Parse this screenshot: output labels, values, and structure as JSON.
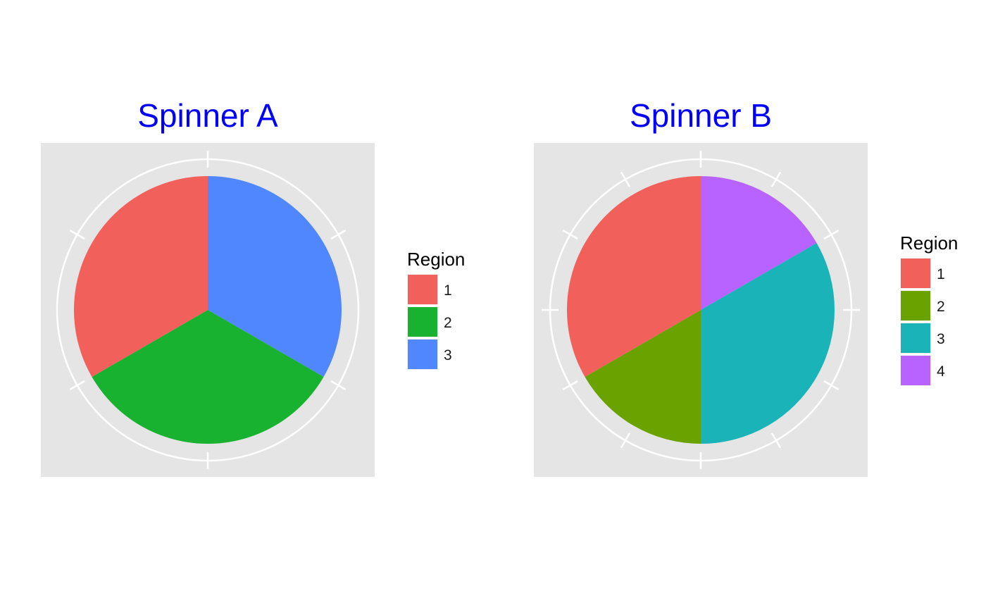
{
  "chart_data": [
    {
      "type": "pie",
      "title": "Spinner A",
      "title_color": "#0000FF",
      "panel_color": "#E5E5E5",
      "grid": true,
      "legend": {
        "title": "Region",
        "placement": "right"
      },
      "start_angle_deg": 0,
      "direction": "clockwise",
      "slices": [
        {
          "label": "1",
          "value": 1,
          "color": "#F2605C"
        },
        {
          "label": "2",
          "value": 1,
          "color": "#19B230"
        },
        {
          "label": "3",
          "value": 1,
          "color": "#5087FF"
        }
      ],
      "segment_order": [
        "3",
        "2",
        "1"
      ],
      "axis_ticks": 6
    },
    {
      "type": "pie",
      "title": "Spinner B",
      "title_color": "#0000FF",
      "panel_color": "#E5E5E5",
      "grid": true,
      "legend": {
        "title": "Region",
        "placement": "right"
      },
      "start_angle_deg": 0,
      "direction": "clockwise",
      "slices": [
        {
          "label": "1",
          "value": 2,
          "color": "#F2605C"
        },
        {
          "label": "2",
          "value": 1,
          "color": "#6AA300"
        },
        {
          "label": "3",
          "value": 2,
          "color": "#19B3B8"
        },
        {
          "label": "4",
          "value": 1,
          "color": "#B863FF"
        }
      ],
      "segment_order": [
        "4",
        "3",
        "2",
        "1"
      ],
      "axis_ticks": 12
    }
  ]
}
